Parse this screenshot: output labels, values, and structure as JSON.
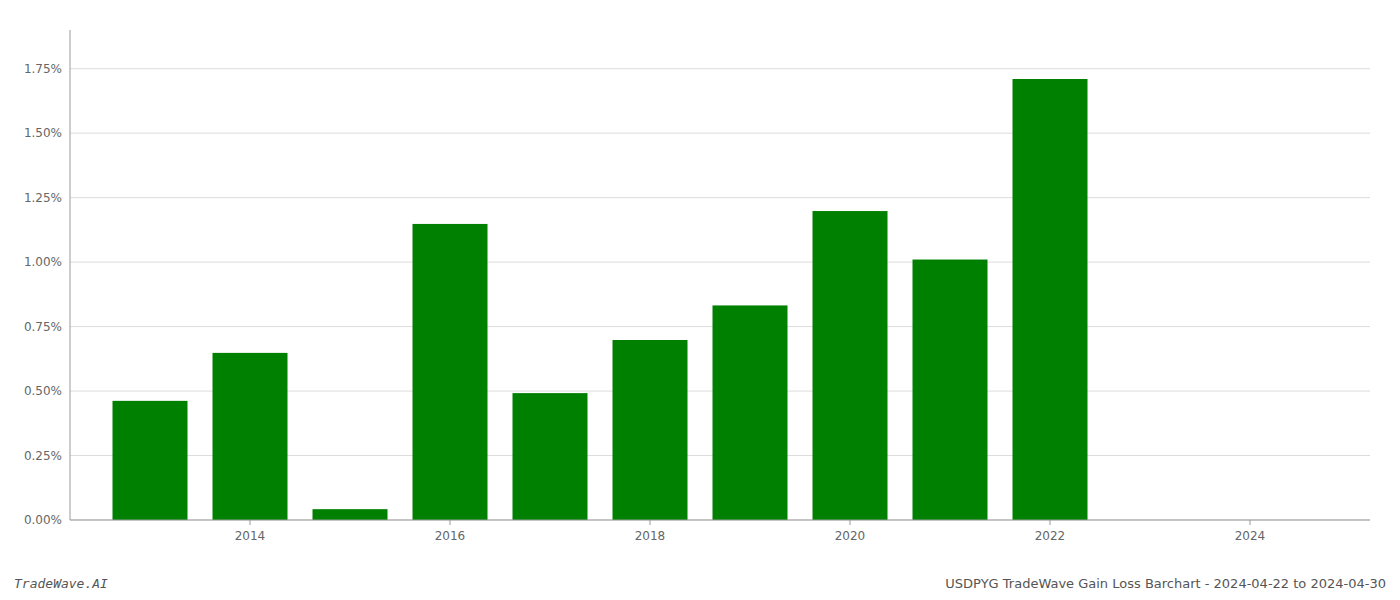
{
  "chart_data": {
    "type": "bar",
    "x": [
      2013,
      2014,
      2015,
      2016,
      2017,
      2018,
      2019,
      2020,
      2021,
      2022,
      2023
    ],
    "values": [
      0.00462,
      0.00648,
      0.00042,
      0.01148,
      0.00492,
      0.00698,
      0.00832,
      0.01198,
      0.0101,
      0.0171,
      0.0
    ],
    "color": "#008000",
    "xlim": [
      2012.2,
      2025.2
    ],
    "xticks": [
      2014,
      2016,
      2018,
      2020,
      2022,
      2024
    ],
    "ylim": [
      0,
      0.019
    ],
    "yticks": [
      {
        "value": 0.0,
        "label": "0.00%"
      },
      {
        "value": 0.0025,
        "label": "0.25%"
      },
      {
        "value": 0.005,
        "label": "0.50%"
      },
      {
        "value": 0.0075,
        "label": "0.75%"
      },
      {
        "value": 0.01,
        "label": "1.00%"
      },
      {
        "value": 0.0125,
        "label": "1.25%"
      },
      {
        "value": 0.015,
        "label": "1.50%"
      },
      {
        "value": 0.0175,
        "label": "1.75%"
      }
    ],
    "grid": true,
    "annotations": [
      "TradeWave.AI",
      "USDPYG TradeWave Gain Loss Barchart - 2024-04-22 to 2024-04-30"
    ]
  }
}
